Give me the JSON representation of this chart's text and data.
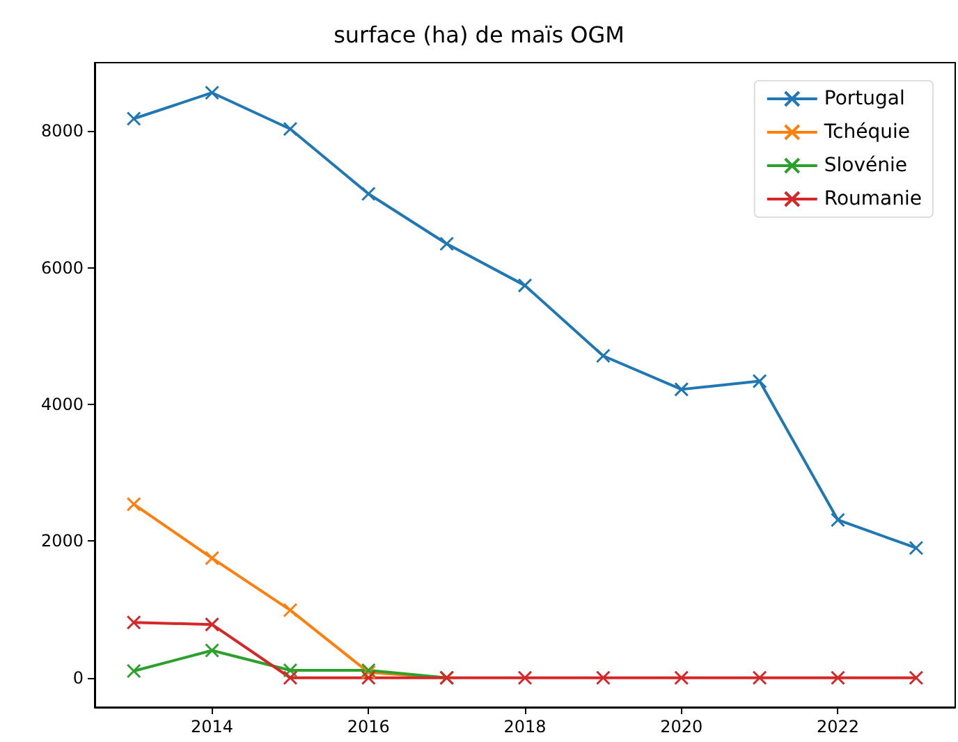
{
  "chart_data": {
    "type": "line",
    "title": "surface (ha) de maïs OGM",
    "x": [
      2013,
      2014,
      2015,
      2016,
      2017,
      2018,
      2019,
      2020,
      2021,
      2022,
      2023
    ],
    "series": [
      {
        "name": "Portugal",
        "color": "#1f77b4",
        "values": [
          8180,
          8560,
          8030,
          7080,
          6350,
          5740,
          4710,
          4220,
          4340,
          2310,
          1900
        ]
      },
      {
        "name": "Tchéquie",
        "color": "#ff7f0e",
        "values": [
          2540,
          1750,
          990,
          80,
          0,
          null,
          null,
          null,
          null,
          null,
          null
        ]
      },
      {
        "name": "Slovénie",
        "color": "#2ca02c",
        "values": [
          100,
          400,
          110,
          110,
          0,
          null,
          null,
          null,
          null,
          null,
          null
        ]
      },
      {
        "name": "Roumanie",
        "color": "#d62728",
        "values": [
          810,
          780,
          0,
          0,
          0,
          0,
          0,
          0,
          0,
          0,
          0
        ]
      }
    ],
    "xlim": [
      2012.5,
      2023.5
    ],
    "xticks": [
      2014,
      2016,
      2018,
      2020,
      2022
    ],
    "ylim": [
      -430,
      9000
    ],
    "yticks": [
      0,
      2000,
      4000,
      6000,
      8000
    ],
    "legend": "top right",
    "marker": "cross",
    "line_style": "solid",
    "grid": false
  }
}
